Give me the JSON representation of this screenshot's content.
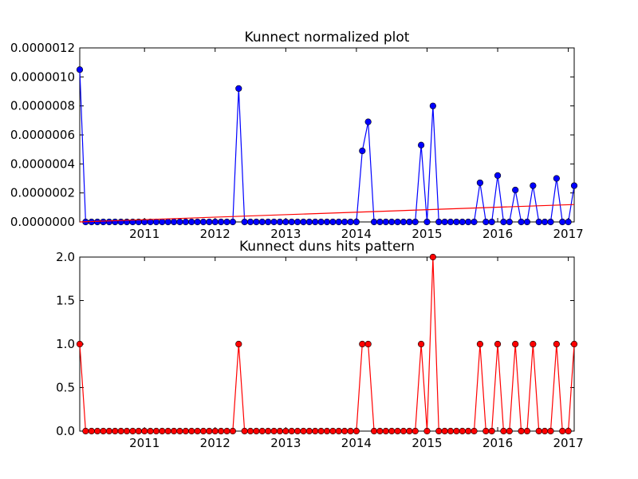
{
  "chart_data": [
    {
      "type": "line",
      "title": "Kunnect normalized plot",
      "xlabel": "",
      "ylabel": "",
      "xlim": [
        "2010-02",
        "2017-02"
      ],
      "ylim": [
        0,
        1.2e-06
      ],
      "x_ticks": [
        "2011",
        "2012",
        "2013",
        "2014",
        "2015",
        "2016",
        "2017"
      ],
      "y_ticks": [
        "0.0000000",
        "0.0000002",
        "0.0000004",
        "0.0000006",
        "0.0000008",
        "0.0000010",
        "0.0000012"
      ],
      "grid": false,
      "series": [
        {
          "color": "#0000ff",
          "marker": "circle",
          "points": [
            [
              "2010-02",
              1.05e-06
            ],
            [
              "2010-03",
              0
            ],
            [
              "2010-04",
              0
            ],
            [
              "2010-05",
              0
            ],
            [
              "2010-06",
              0
            ],
            [
              "2010-07",
              0
            ],
            [
              "2010-08",
              0
            ],
            [
              "2010-09",
              0
            ],
            [
              "2010-10",
              0
            ],
            [
              "2010-11",
              0
            ],
            [
              "2010-12",
              0
            ],
            [
              "2011-01",
              0
            ],
            [
              "2011-02",
              0
            ],
            [
              "2011-03",
              0
            ],
            [
              "2011-04",
              0
            ],
            [
              "2011-05",
              0
            ],
            [
              "2011-06",
              0
            ],
            [
              "2011-07",
              0
            ],
            [
              "2011-08",
              0
            ],
            [
              "2011-09",
              0
            ],
            [
              "2011-10",
              0
            ],
            [
              "2011-11",
              0
            ],
            [
              "2011-12",
              0
            ],
            [
              "2012-01",
              0
            ],
            [
              "2012-02",
              0
            ],
            [
              "2012-03",
              0
            ],
            [
              "2012-04",
              0
            ],
            [
              "2012-05",
              9.2e-07
            ],
            [
              "2012-06",
              0
            ],
            [
              "2012-07",
              0
            ],
            [
              "2012-08",
              0
            ],
            [
              "2012-09",
              0
            ],
            [
              "2012-10",
              0
            ],
            [
              "2012-11",
              0
            ],
            [
              "2012-12",
              0
            ],
            [
              "2013-01",
              0
            ],
            [
              "2013-02",
              0
            ],
            [
              "2013-03",
              0
            ],
            [
              "2013-04",
              0
            ],
            [
              "2013-05",
              0
            ],
            [
              "2013-06",
              0
            ],
            [
              "2013-07",
              0
            ],
            [
              "2013-08",
              0
            ],
            [
              "2013-09",
              0
            ],
            [
              "2013-10",
              0
            ],
            [
              "2013-11",
              0
            ],
            [
              "2013-12",
              0
            ],
            [
              "2014-01",
              0
            ],
            [
              "2014-02",
              4.9e-07
            ],
            [
              "2014-03",
              6.9e-07
            ],
            [
              "2014-04",
              0
            ],
            [
              "2014-05",
              0
            ],
            [
              "2014-06",
              0
            ],
            [
              "2014-07",
              0
            ],
            [
              "2014-08",
              0
            ],
            [
              "2014-09",
              0
            ],
            [
              "2014-10",
              0
            ],
            [
              "2014-11",
              0
            ],
            [
              "2014-12",
              5.3e-07
            ],
            [
              "2015-01",
              0
            ],
            [
              "2015-02",
              8e-07
            ],
            [
              "2015-03",
              0
            ],
            [
              "2015-04",
              0
            ],
            [
              "2015-05",
              0
            ],
            [
              "2015-06",
              0
            ],
            [
              "2015-07",
              0
            ],
            [
              "2015-08",
              0
            ],
            [
              "2015-09",
              0
            ],
            [
              "2015-10",
              2.7e-07
            ],
            [
              "2015-11",
              0
            ],
            [
              "2015-12",
              0
            ],
            [
              "2016-01",
              3.2e-07
            ],
            [
              "2016-02",
              0
            ],
            [
              "2016-03",
              0
            ],
            [
              "2016-04",
              2.2e-07
            ],
            [
              "2016-05",
              0
            ],
            [
              "2016-06",
              0
            ],
            [
              "2016-07",
              2.5e-07
            ],
            [
              "2016-08",
              0
            ],
            [
              "2016-09",
              0
            ],
            [
              "2016-10",
              0
            ],
            [
              "2016-11",
              3e-07
            ],
            [
              "2016-12",
              0
            ],
            [
              "2017-01",
              0
            ],
            [
              "2017-02",
              2.5e-07
            ]
          ]
        },
        {
          "color": "#ff0000",
          "marker": "none",
          "points": [
            [
              "2010-02",
              0
            ],
            [
              "2017-02",
              1.2e-07
            ]
          ]
        }
      ]
    },
    {
      "type": "line",
      "title": "Kunnect duns hits pattern",
      "xlabel": "",
      "ylabel": "",
      "xlim": [
        "2010-02",
        "2017-02"
      ],
      "ylim": [
        0,
        2.0
      ],
      "x_ticks": [
        "2011",
        "2012",
        "2013",
        "2014",
        "2015",
        "2016",
        "2017"
      ],
      "y_ticks": [
        "0.0",
        "0.5",
        "1.0",
        "1.5",
        "2.0"
      ],
      "grid": false,
      "series": [
        {
          "color": "#ff0000",
          "marker": "circle",
          "points": [
            [
              "2010-02",
              1
            ],
            [
              "2010-03",
              0
            ],
            [
              "2010-04",
              0
            ],
            [
              "2010-05",
              0
            ],
            [
              "2010-06",
              0
            ],
            [
              "2010-07",
              0
            ],
            [
              "2010-08",
              0
            ],
            [
              "2010-09",
              0
            ],
            [
              "2010-10",
              0
            ],
            [
              "2010-11",
              0
            ],
            [
              "2010-12",
              0
            ],
            [
              "2011-01",
              0
            ],
            [
              "2011-02",
              0
            ],
            [
              "2011-03",
              0
            ],
            [
              "2011-04",
              0
            ],
            [
              "2011-05",
              0
            ],
            [
              "2011-06",
              0
            ],
            [
              "2011-07",
              0
            ],
            [
              "2011-08",
              0
            ],
            [
              "2011-09",
              0
            ],
            [
              "2011-10",
              0
            ],
            [
              "2011-11",
              0
            ],
            [
              "2011-12",
              0
            ],
            [
              "2012-01",
              0
            ],
            [
              "2012-02",
              0
            ],
            [
              "2012-03",
              0
            ],
            [
              "2012-04",
              0
            ],
            [
              "2012-05",
              1
            ],
            [
              "2012-06",
              0
            ],
            [
              "2012-07",
              0
            ],
            [
              "2012-08",
              0
            ],
            [
              "2012-09",
              0
            ],
            [
              "2012-10",
              0
            ],
            [
              "2012-11",
              0
            ],
            [
              "2012-12",
              0
            ],
            [
              "2013-01",
              0
            ],
            [
              "2013-02",
              0
            ],
            [
              "2013-03",
              0
            ],
            [
              "2013-04",
              0
            ],
            [
              "2013-05",
              0
            ],
            [
              "2013-06",
              0
            ],
            [
              "2013-07",
              0
            ],
            [
              "2013-08",
              0
            ],
            [
              "2013-09",
              0
            ],
            [
              "2013-10",
              0
            ],
            [
              "2013-11",
              0
            ],
            [
              "2013-12",
              0
            ],
            [
              "2014-01",
              0
            ],
            [
              "2014-02",
              1
            ],
            [
              "2014-03",
              1
            ],
            [
              "2014-04",
              0
            ],
            [
              "2014-05",
              0
            ],
            [
              "2014-06",
              0
            ],
            [
              "2014-07",
              0
            ],
            [
              "2014-08",
              0
            ],
            [
              "2014-09",
              0
            ],
            [
              "2014-10",
              0
            ],
            [
              "2014-11",
              0
            ],
            [
              "2014-12",
              1
            ],
            [
              "2015-01",
              0
            ],
            [
              "2015-02",
              2
            ],
            [
              "2015-03",
              0
            ],
            [
              "2015-04",
              0
            ],
            [
              "2015-05",
              0
            ],
            [
              "2015-06",
              0
            ],
            [
              "2015-07",
              0
            ],
            [
              "2015-08",
              0
            ],
            [
              "2015-09",
              0
            ],
            [
              "2015-10",
              1
            ],
            [
              "2015-11",
              0
            ],
            [
              "2015-12",
              0
            ],
            [
              "2016-01",
              1
            ],
            [
              "2016-02",
              0
            ],
            [
              "2016-03",
              0
            ],
            [
              "2016-04",
              1
            ],
            [
              "2016-05",
              0
            ],
            [
              "2016-06",
              0
            ],
            [
              "2016-07",
              1
            ],
            [
              "2016-08",
              0
            ],
            [
              "2016-09",
              0
            ],
            [
              "2016-10",
              0
            ],
            [
              "2016-11",
              1
            ],
            [
              "2016-12",
              0
            ],
            [
              "2017-01",
              0
            ],
            [
              "2017-02",
              1
            ]
          ]
        }
      ]
    }
  ]
}
